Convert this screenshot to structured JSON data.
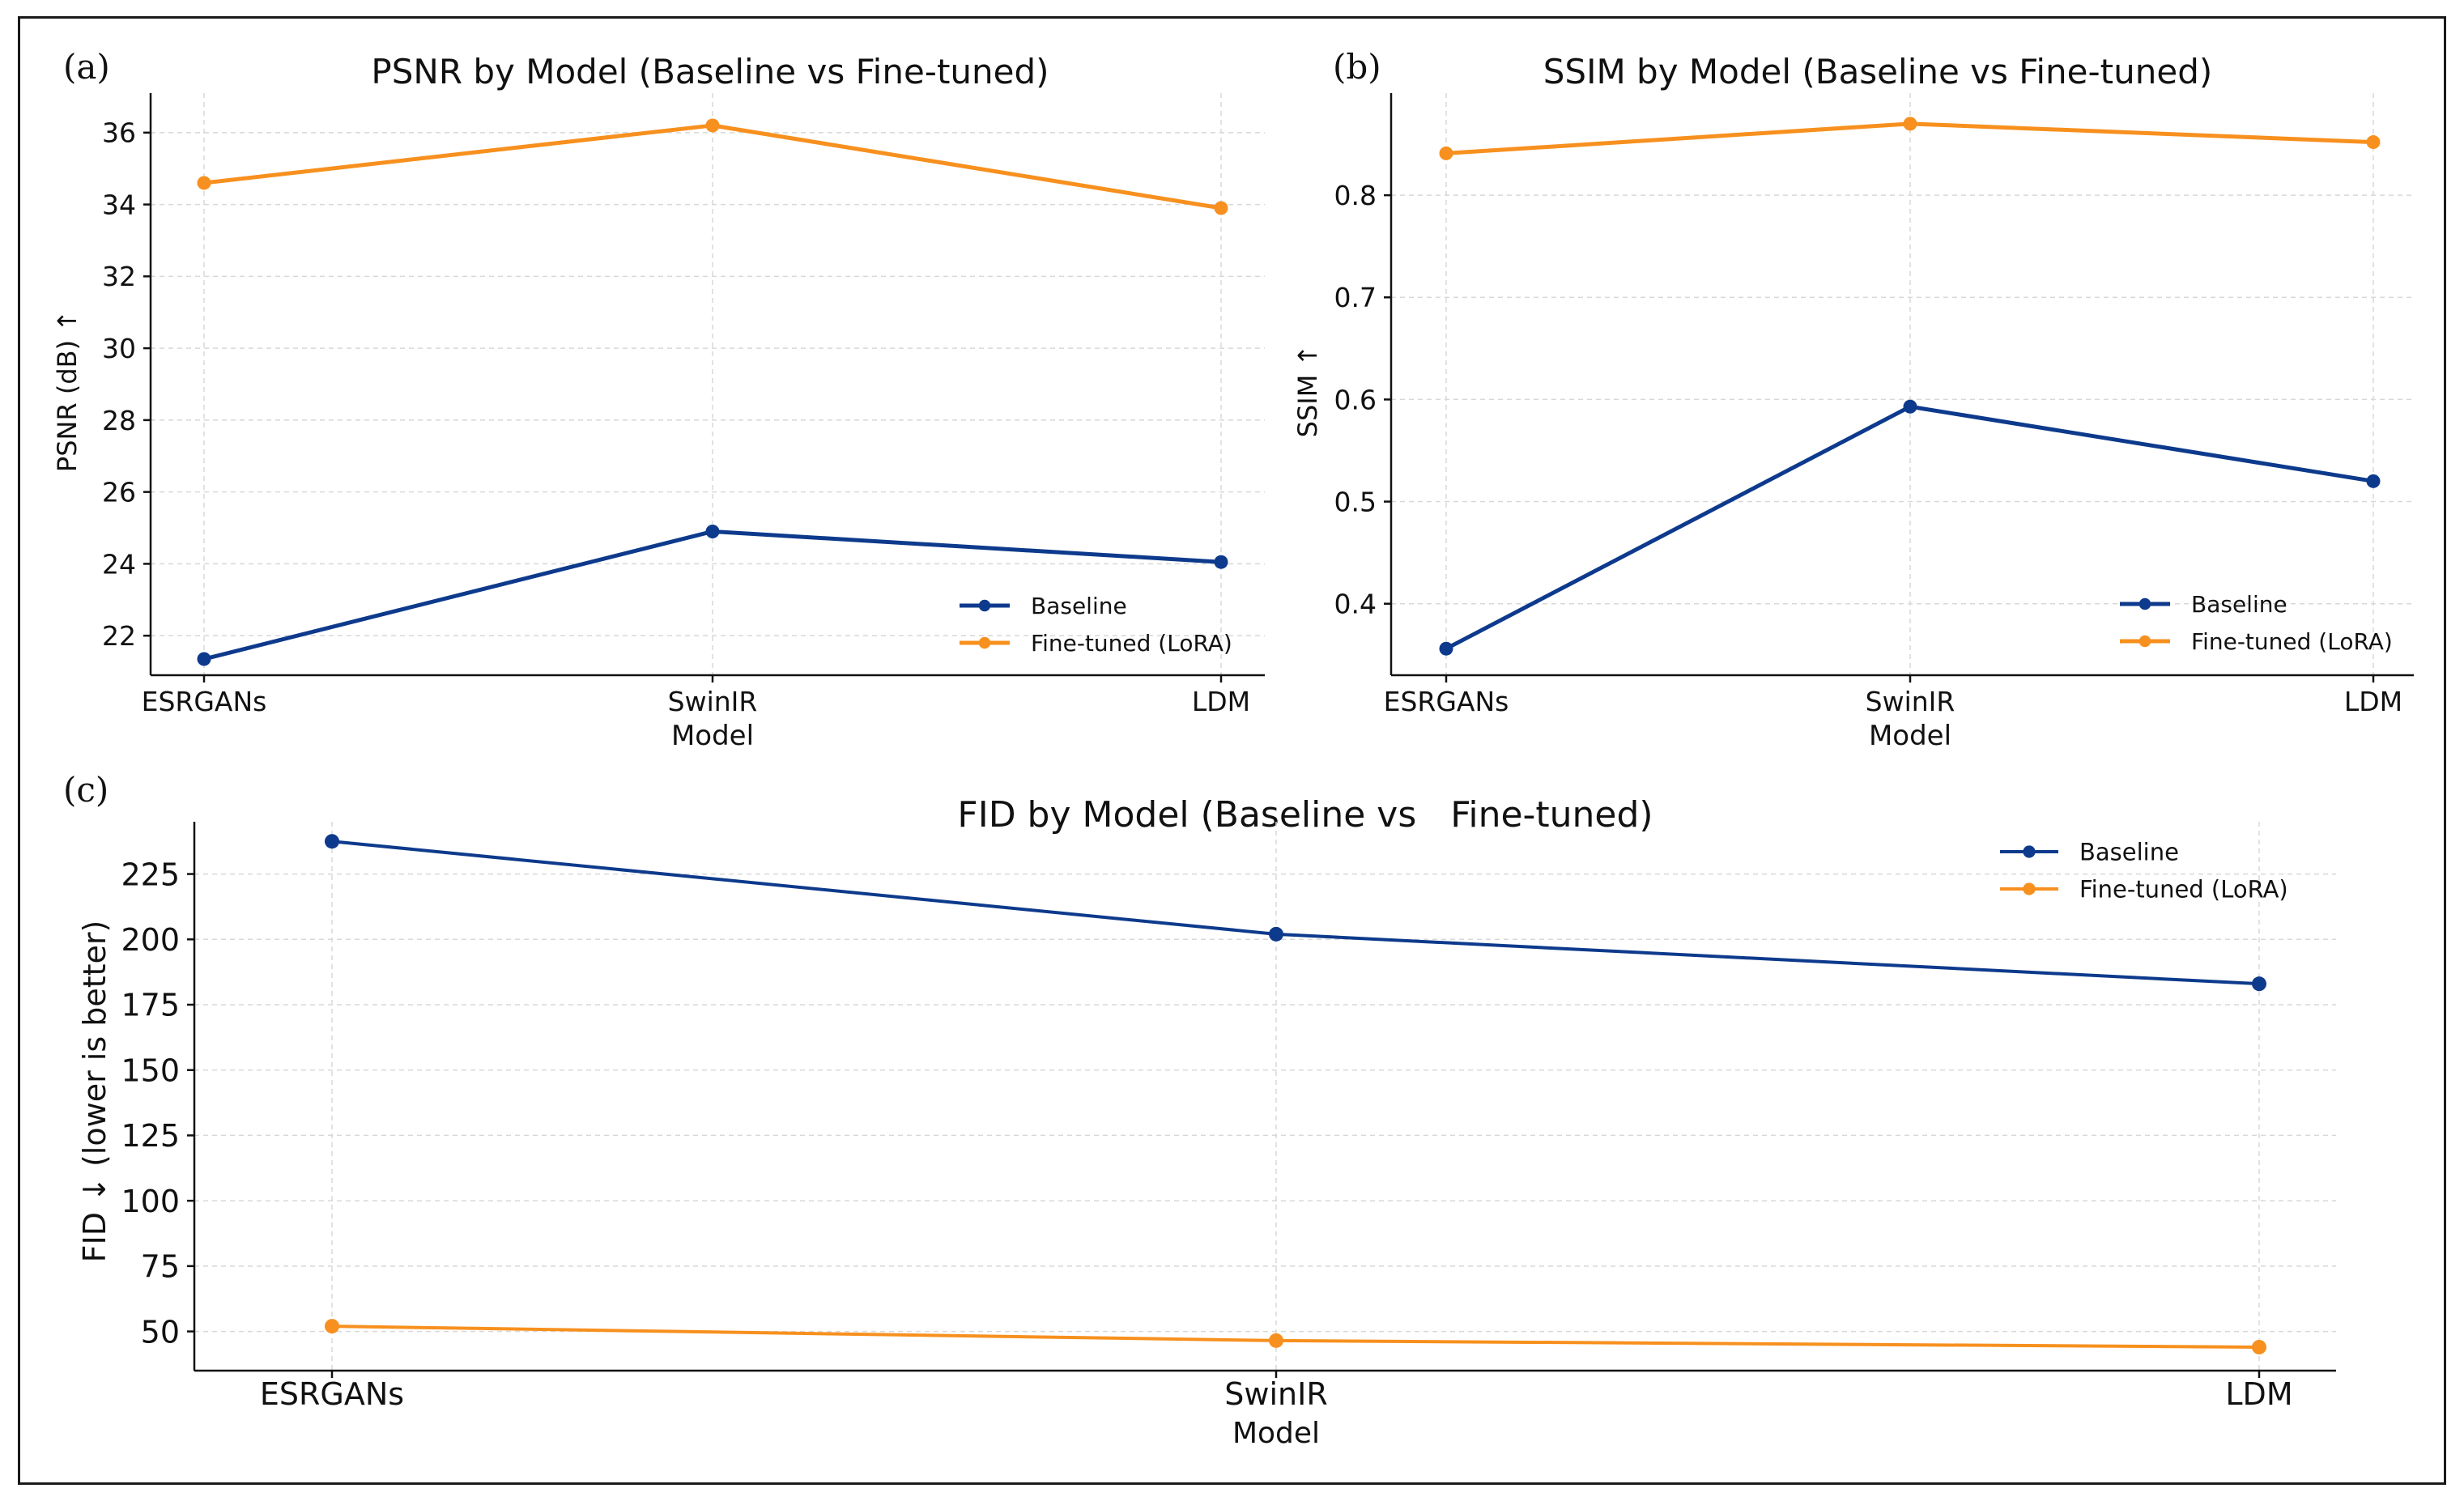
{
  "colors": {
    "baseline": "#0d3a8c",
    "finetuned": "#f7901e"
  },
  "panels": [
    {
      "letter": "(a)",
      "chart_data": {
        "type": "line",
        "title": "PSNR by Model (Baseline vs Fine-tuned)",
        "xlabel": "Model",
        "ylabel": "PSNR (dB) ↑",
        "categories": [
          "ESRGANs",
          "SwinIR",
          "LDM"
        ],
        "yticks": [
          22,
          24,
          26,
          28,
          30,
          32,
          34,
          36
        ],
        "ylim": [
          20.9,
          37.1
        ],
        "grid": true,
        "legend_position": "lower-right",
        "series": [
          {
            "name": "Baseline",
            "color": "#0d3a8c",
            "values": [
              21.35,
              24.9,
              24.05
            ]
          },
          {
            "name": "Fine-tuned (LoRA)",
            "color": "#f7901e",
            "values": [
              34.6,
              36.2,
              33.9
            ]
          }
        ]
      }
    },
    {
      "letter": "(b)",
      "chart_data": {
        "type": "line",
        "title": "SSIM by Model (Baseline vs Fine-tuned)",
        "xlabel": "Model",
        "ylabel": "SSIM ↑",
        "categories": [
          "ESRGANs",
          "SwinIR",
          "LDM"
        ],
        "yticks": [
          0.4,
          0.5,
          0.6,
          0.7,
          0.8
        ],
        "ylim": [
          0.33,
          0.9
        ],
        "grid": true,
        "legend_position": "lower-right",
        "series": [
          {
            "name": "Baseline",
            "color": "#0d3a8c",
            "values": [
              0.356,
              0.593,
              0.52
            ]
          },
          {
            "name": "Fine-tuned (LoRA)",
            "color": "#f7901e",
            "values": [
              0.841,
              0.87,
              0.852
            ]
          }
        ]
      }
    },
    {
      "letter": "(c)",
      "chart_data": {
        "type": "line",
        "title": "FID by Model (Baseline vs   Fine-tuned)",
        "xlabel": "Model",
        "ylabel": "FID ↓ (lower is better)",
        "categories": [
          "ESRGANs",
          "SwinIR",
          "LDM"
        ],
        "yticks": [
          50,
          75,
          100,
          125,
          150,
          175,
          200,
          225
        ],
        "ylim": [
          35,
          245
        ],
        "grid": true,
        "legend_position": "top-right",
        "series": [
          {
            "name": "Baseline",
            "color": "#0d3a8c",
            "values": [
              237.5,
              202,
              183
            ]
          },
          {
            "name": "Fine-tuned (LoRA)",
            "color": "#f7901e",
            "values": [
              52,
              46.5,
              44
            ]
          }
        ]
      }
    }
  ]
}
